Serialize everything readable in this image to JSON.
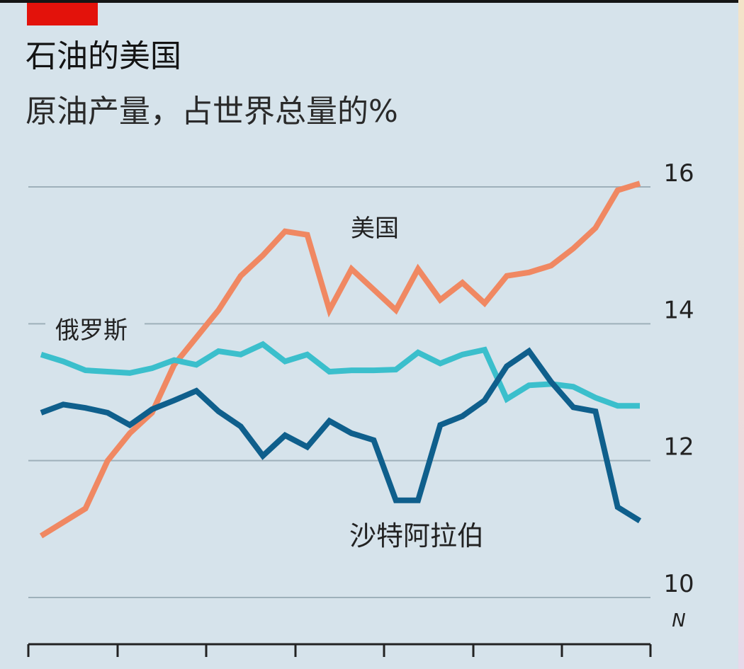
{
  "header": {
    "title": "石油的美国",
    "subtitle": "原油产量，占世界总量的%"
  },
  "colors": {
    "background": "#d6e3eb",
    "brand_tag": "#e3120b",
    "grid": "#9eb0ba",
    "text": "#222222",
    "usa": "#f08862",
    "russia": "#3bbfcc",
    "saudi": "#0f5f8c"
  },
  "chart_data": {
    "type": "line",
    "title": "石油的美国",
    "subtitle": "原油产量，占世界总量的%",
    "xlabel": "",
    "ylabel": "原油产量，占世界总量的%",
    "ylim": [
      10,
      16
    ],
    "yticks": [
      "10",
      "12",
      "14",
      "16"
    ],
    "grid": true,
    "axis_marker": "N",
    "x_count": 29,
    "series": [
      {
        "name": "美国",
        "values": [
          10.9,
          11.1,
          11.3,
          12.0,
          12.4,
          12.7,
          13.4,
          13.8,
          14.2,
          14.7,
          15.0,
          15.35,
          15.3,
          14.2,
          14.8,
          14.5,
          14.2,
          14.8,
          14.35,
          14.6,
          14.3,
          14.7,
          14.75,
          14.85,
          15.1,
          15.4,
          15.95,
          16.05,
          null
        ],
        "label": "美国"
      },
      {
        "name": "俄罗斯",
        "values": [
          13.55,
          13.45,
          13.32,
          13.3,
          13.28,
          13.35,
          13.47,
          13.4,
          13.6,
          13.55,
          13.7,
          13.45,
          13.55,
          13.3,
          13.32,
          13.32,
          13.33,
          13.58,
          13.42,
          13.55,
          13.62,
          12.9,
          13.1,
          13.12,
          13.08,
          12.92,
          12.8,
          12.8,
          null
        ],
        "label": "俄罗斯"
      },
      {
        "name": "沙特阿拉伯",
        "values": [
          12.7,
          12.82,
          12.77,
          12.7,
          12.52,
          12.75,
          12.88,
          13.02,
          12.72,
          12.5,
          12.07,
          12.37,
          12.2,
          12.58,
          12.4,
          12.3,
          11.42,
          11.42,
          12.52,
          12.65,
          12.88,
          13.38,
          13.6,
          13.15,
          12.78,
          12.72,
          11.32,
          11.12,
          null
        ],
        "label": "沙特阿拉伯"
      }
    ],
    "annotations": [
      "美国",
      "俄罗斯",
      "沙特阿拉伯"
    ]
  }
}
